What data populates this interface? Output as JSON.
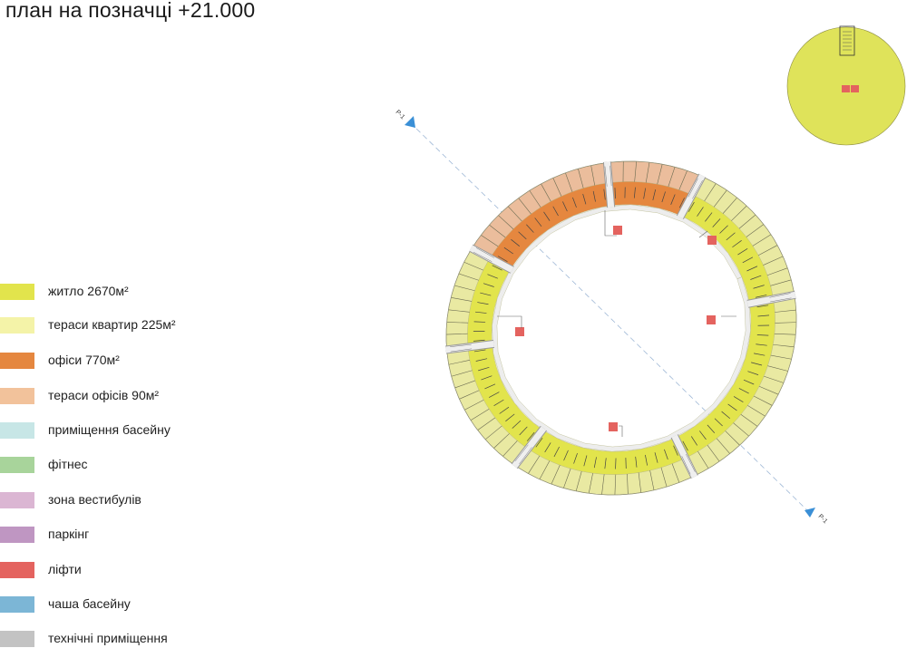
{
  "title": "план на позначці +21.000",
  "legend": [
    {
      "label": "житло  2670м²",
      "color": "#e2e44c"
    },
    {
      "label": "тераси квартир  225м²",
      "color": "#f4f3a8"
    },
    {
      "label": "офіси  770м²",
      "color": "#e5873f"
    },
    {
      "label": "тераси офісів  90м²",
      "color": "#f2c29b"
    },
    {
      "label": "приміщення басейну",
      "color": "#c7e6e6"
    },
    {
      "label": "фітнес",
      "color": "#a8d49b"
    },
    {
      "label": "зона вестибулів",
      "color": "#dbb6d3"
    },
    {
      "label": "паркінг",
      "color": "#bf96c2"
    },
    {
      "label": "ліфти",
      "color": "#e4635f"
    },
    {
      "label": "чаша басейну",
      "color": "#7cb6d6"
    },
    {
      "label": "технічні приміщення",
      "color": "#c3c3c3"
    }
  ],
  "section_marker": {
    "label": "P-1",
    "color": "#3a8fd6"
  },
  "colors": {
    "housing": "#e2e44c",
    "housing_terrace": "#e9e9a2",
    "office": "#e5873f",
    "office_terrace": "#ebbd9c",
    "lift": "#e4635f",
    "core": "#efefef",
    "inner_ring": "#ededed",
    "key_plan": "#dfe35a"
  }
}
